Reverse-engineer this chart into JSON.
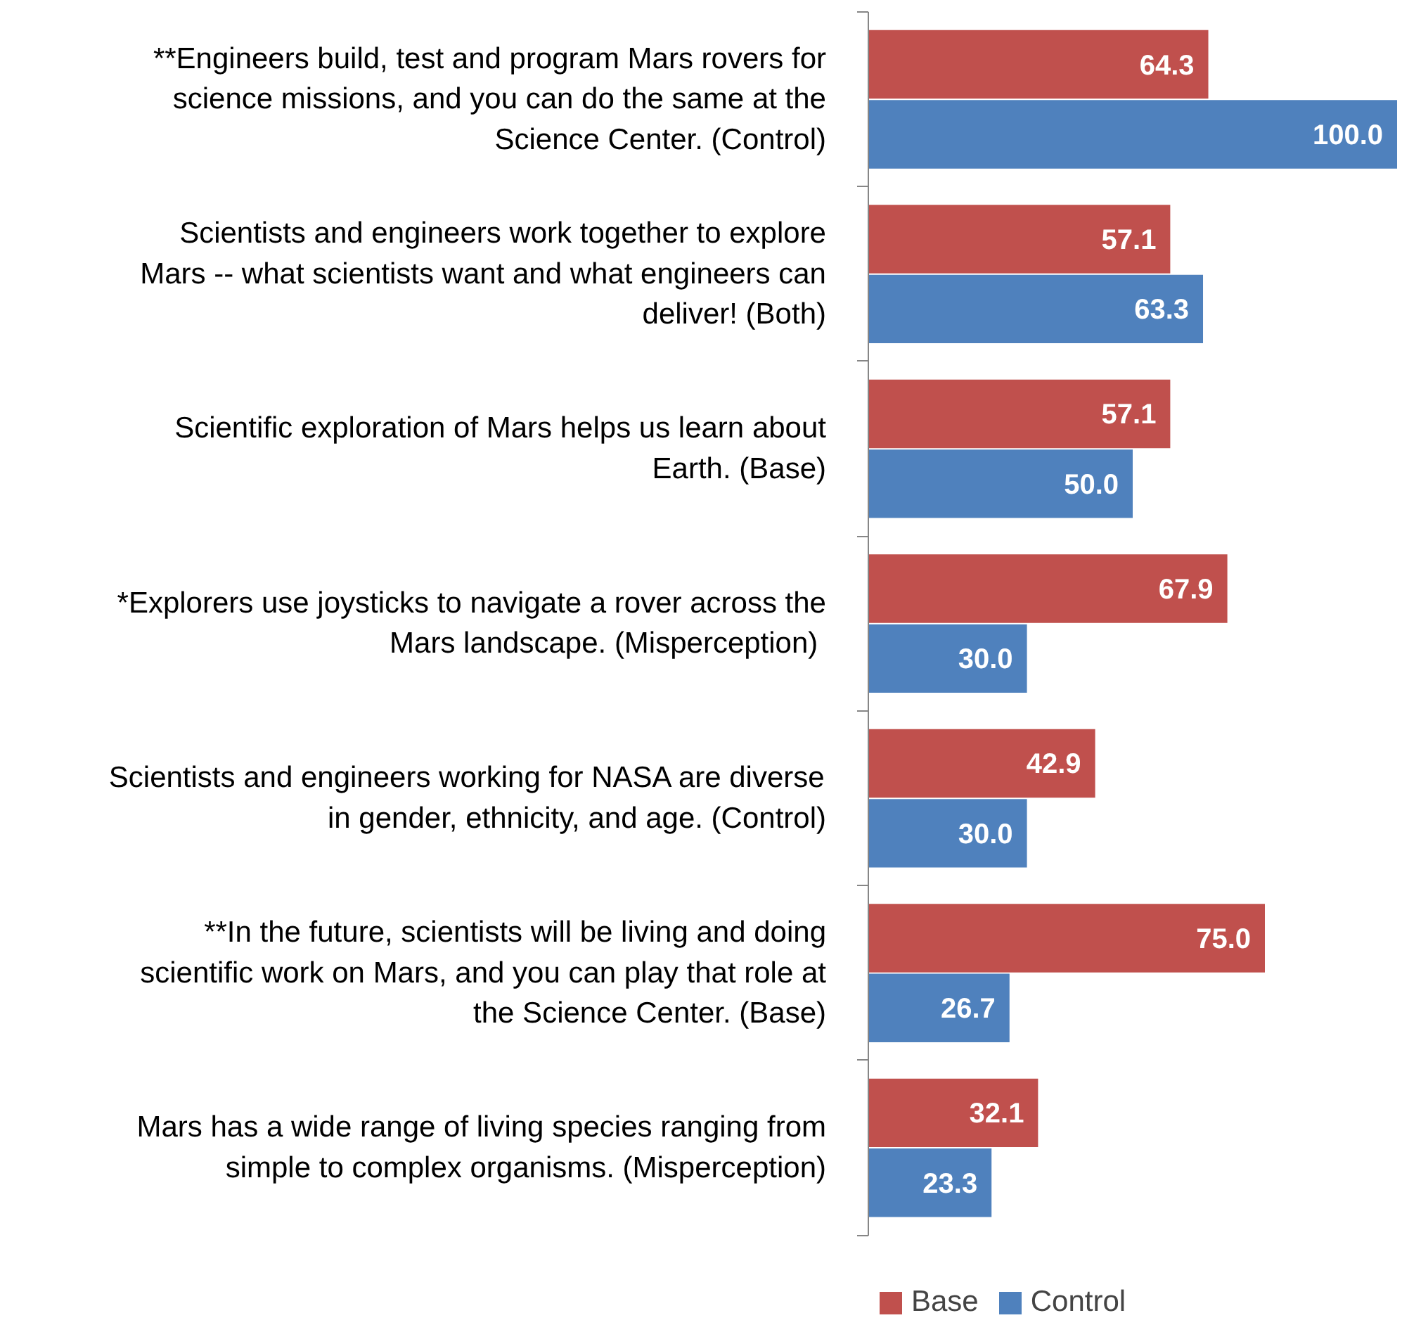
{
  "chart_data": {
    "type": "bar",
    "orientation": "horizontal",
    "categories": [
      "**Engineers build, test and program Mars rovers for\nscience missions, and you can do the same at the\nScience Center. (Control)",
      "Scientists and engineers work together to explore\nMars -- what scientists want and what engineers can\ndeliver! (Both)",
      "Scientific exploration of Mars helps us learn about\nEarth. (Base)",
      "*Explorers use joysticks to navigate a rover across the\nMars landscape.  (Misperception)",
      "Scientists and engineers working for NASA are diverse\nin gender, ethnicity, and age. (Control)",
      "**In the future, scientists will be living and doing\nscientific work on Mars, and you can play that role at\nthe Science Center. (Base)",
      "Mars has a wide range of living species ranging from\nsimple to complex organisms. (Misperception)"
    ],
    "series": [
      {
        "name": "Base",
        "color": "#c0504d",
        "values": [
          64.3,
          57.1,
          57.1,
          67.9,
          42.9,
          75,
          32.1
        ],
        "value_labels": [
          "64.3",
          "57.1",
          "57.1",
          "67.9",
          "42.9",
          "75.0",
          "32.1"
        ]
      },
      {
        "name": "Control",
        "color": "#4f81bd",
        "values": [
          100,
          63.3,
          50,
          30,
          30,
          26.7,
          23.3
        ],
        "value_labels": [
          "100.0",
          "63.3",
          "50.0",
          "30.0",
          "30.0",
          "26.7",
          "23.3"
        ]
      }
    ],
    "xlim": [
      0,
      100
    ],
    "legend": "bottom",
    "tick_labels": "y",
    "grid": false
  }
}
